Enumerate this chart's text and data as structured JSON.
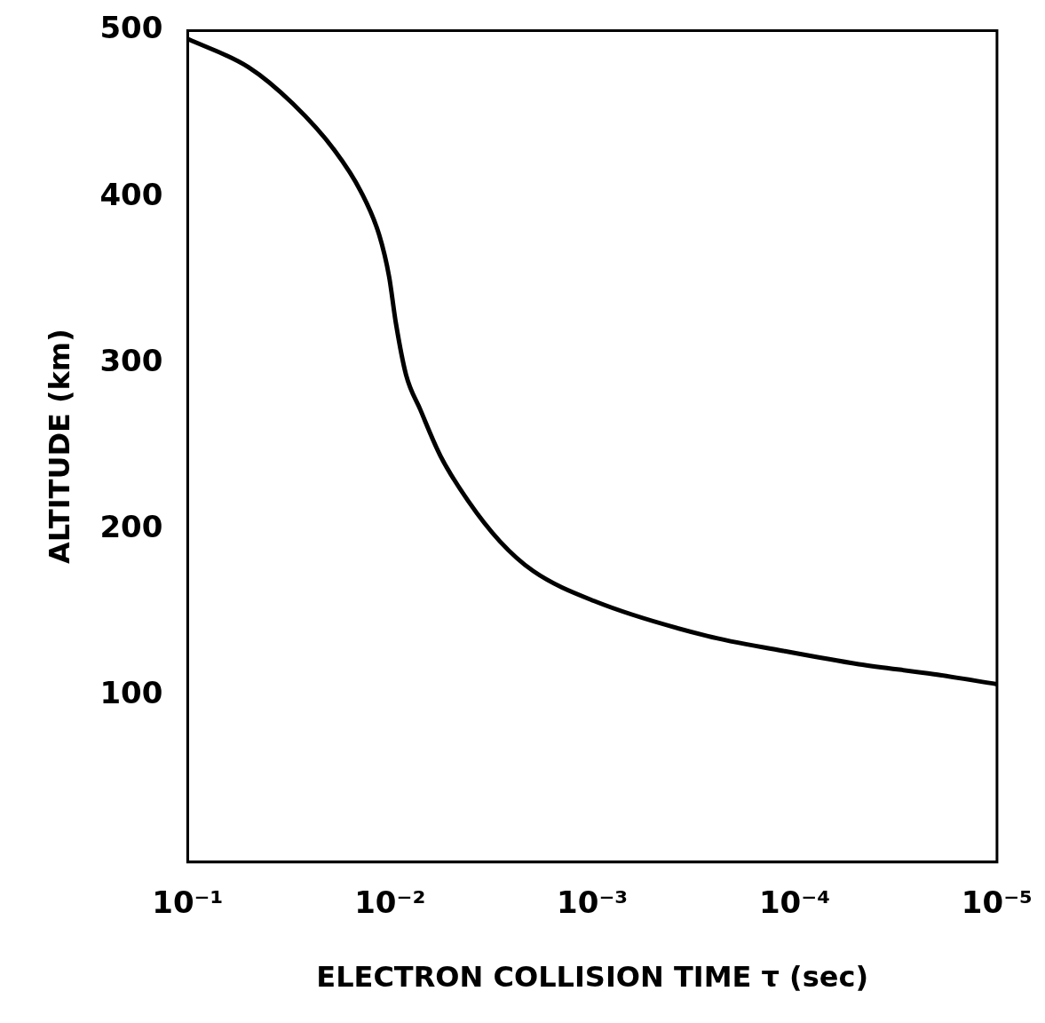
{
  "chart_data": {
    "type": "line",
    "xlabel": "ELECTRON COLLISION TIME τ (sec)",
    "ylabel": "ALTITUDE (km)",
    "x": [
      0.1,
      0.0501,
      0.0302,
      0.0188,
      0.0139,
      0.0113,
      0.0101,
      0.00935,
      0.00833,
      0.00708,
      0.00562,
      0.0041,
      0.00287,
      0.00196,
      0.00098,
      0.000271,
      0.000114,
      4.82e-05,
      2.05e-05,
      1e-05
    ],
    "values": [
      495,
      478,
      456,
      428,
      403,
      377,
      352,
      324,
      293,
      272,
      244,
      217,
      193,
      175,
      157,
      136,
      127,
      119,
      113,
      107
    ],
    "color": "#000000",
    "log": "x",
    "xlim": [
      0.1,
      1e-05
    ],
    "xticks": [
      {
        "value": 0.1,
        "label": "10⁻¹"
      },
      {
        "value": 0.01,
        "label": "10⁻²"
      },
      {
        "value": 0.001,
        "label": "10⁻³"
      },
      {
        "value": 0.0001,
        "label": "10⁻⁴"
      },
      {
        "value": 1e-05,
        "label": "10⁻⁵"
      }
    ],
    "ylim": [
      0,
      500
    ],
    "yticks": [
      100,
      200,
      300,
      400,
      500
    ]
  }
}
